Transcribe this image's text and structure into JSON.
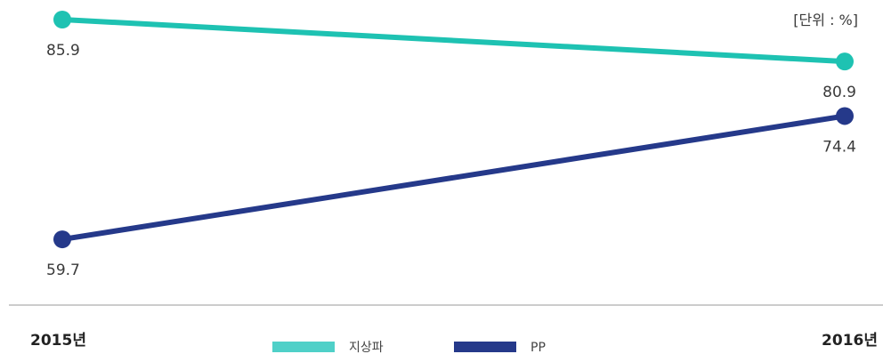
{
  "chart_data": {
    "type": "line",
    "categories": [
      "2015년",
      "2016년"
    ],
    "unit_label": "[단위 : %]",
    "series": [
      {
        "name": "지상파",
        "values": [
          85.9,
          80.9
        ],
        "labels": [
          "85.9",
          "80.9"
        ],
        "color": "#1ec2b2"
      },
      {
        "name": "PP",
        "values": [
          59.7,
          74.4
        ],
        "labels": [
          "59.7",
          "74.4"
        ],
        "color": "#25398a"
      }
    ],
    "legend_position": "bottom",
    "legend_colors": [
      "#4fd0c8",
      "#25398a"
    ]
  }
}
